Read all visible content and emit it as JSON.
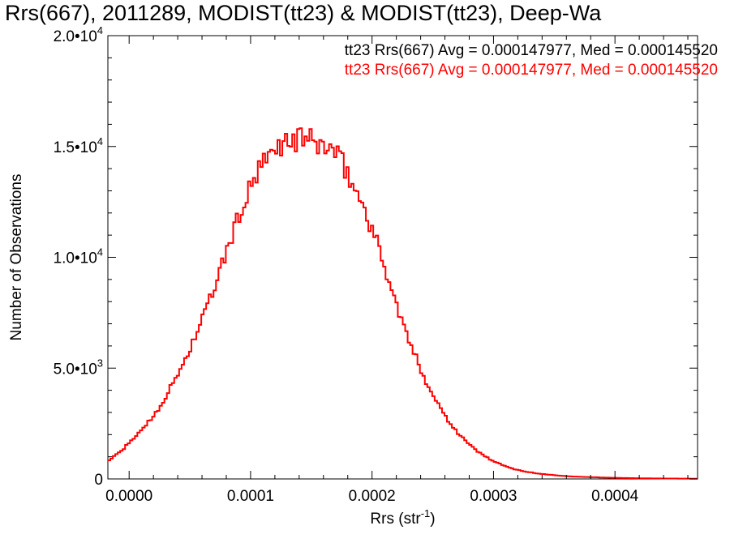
{
  "chart_data": {
    "type": "line",
    "title": "Rrs(667), 2011289, MODIST(tt23) & MODIST(tt23), Deep-Wa",
    "xlabel": "Rrs (str",
    "xlabel_sup": "-1",
    "xlabel_close": ")",
    "ylabel": "Number of Observations",
    "xlim": [
      -1.75e-05,
      0.000468
    ],
    "ylim": [
      0,
      20000
    ],
    "x_ticks": [
      {
        "value": 0.0,
        "label": "0.0000"
      },
      {
        "value": 0.0001,
        "label": "0.0001"
      },
      {
        "value": 0.0002,
        "label": "0.0002"
      },
      {
        "value": 0.0003,
        "label": "0.0003"
      },
      {
        "value": 0.0004,
        "label": "0.0004"
      }
    ],
    "y_ticks": [
      {
        "value": 0,
        "mant": "0",
        "exp": ""
      },
      {
        "value": 5000,
        "mant": "5.0•10",
        "exp": "3"
      },
      {
        "value": 10000,
        "mant": "1.0•10",
        "exp": "4"
      },
      {
        "value": 15000,
        "mant": "1.5•10",
        "exp": "4"
      },
      {
        "value": 20000,
        "mant": "2.0•10",
        "exp": "4"
      }
    ],
    "annotations": [
      {
        "text": "tt23 Rrs(667) Avg = 0.000147977, Med = 0.000145520",
        "color": "#000000"
      },
      {
        "text": "tt23 Rrs(667) Avg = 0.000147977, Med = 0.000145520",
        "color": "#ff0000"
      }
    ],
    "series": [
      {
        "color": "#ff0000",
        "x": [
          -1.75e-05,
          -8e-06,
          0.0,
          8e-06,
          1.8e-05,
          2.8e-05,
          3.8e-05,
          4.8e-05,
          5.8e-05,
          6.8e-05,
          7.8e-05,
          8.8e-05,
          9.8e-05,
          0.000108,
          0.000118,
          0.000125,
          0.000132,
          0.000138,
          0.000142,
          0.000148,
          0.000155,
          0.000162,
          0.000168,
          0.000175,
          0.000182,
          0.000192,
          0.000202,
          0.000212,
          0.000222,
          0.000232,
          0.000242,
          0.000252,
          0.000262,
          0.000272,
          0.000282,
          0.000292,
          0.000302,
          0.000312,
          0.000322,
          0.000335,
          0.00035,
          0.000365,
          0.00038,
          0.0004,
          0.00042,
          0.00044,
          0.000468
        ],
        "values": [
          800,
          1200,
          1600,
          2100,
          2700,
          3500,
          4500,
          5600,
          6900,
          8300,
          9900,
          11500,
          12900,
          14000,
          14700,
          15100,
          15300,
          15200,
          15500,
          15300,
          15100,
          15000,
          14800,
          14300,
          13500,
          12400,
          11000,
          9300,
          7500,
          6000,
          4700,
          3600,
          2700,
          2000,
          1450,
          1050,
          750,
          520,
          380,
          250,
          170,
          110,
          80,
          50,
          30,
          20,
          10
        ]
      }
    ]
  }
}
